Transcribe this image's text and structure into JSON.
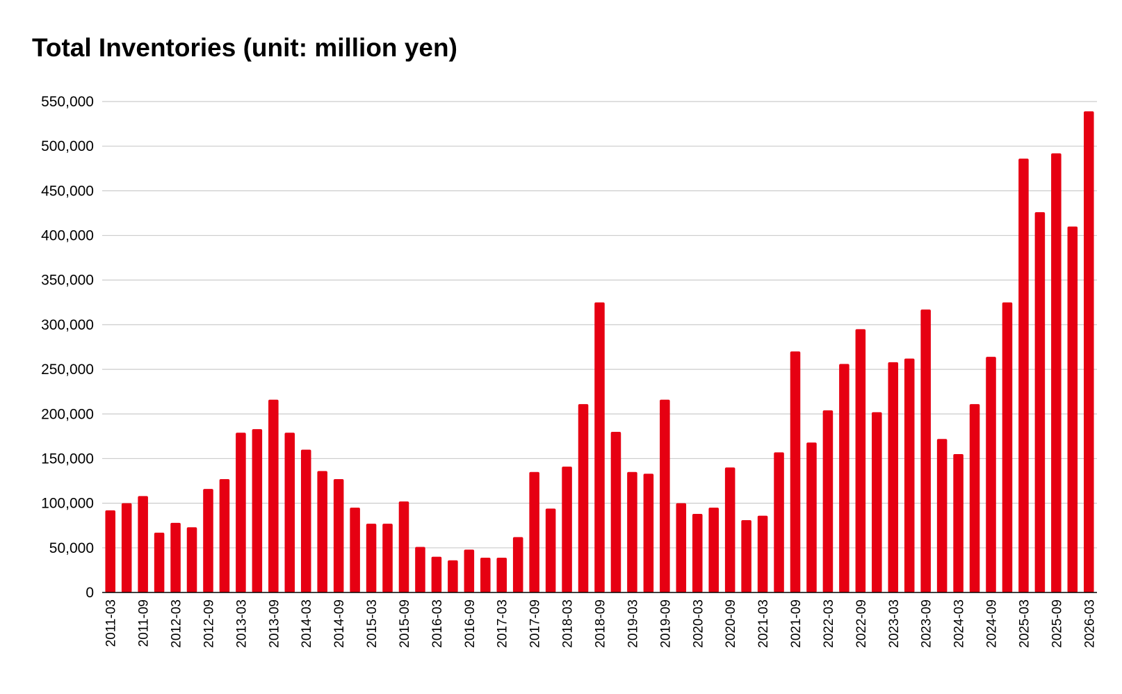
{
  "chart_data": {
    "type": "bar",
    "title": "Total Inventories (unit: million yen)",
    "xlabel": "",
    "ylabel": "",
    "ylim": [
      0,
      550000
    ],
    "yticks": [
      "0",
      "50,000",
      "100,000",
      "150,000",
      "200,000",
      "250,000",
      "300,000",
      "350,000",
      "400,000",
      "450,000",
      "500,000",
      "550,000"
    ],
    "grid": true,
    "bar_color": "#e60012",
    "categories": [
      "2011-03",
      "2011-06",
      "2011-09",
      "2011-12",
      "2012-03",
      "2012-06",
      "2012-09",
      "2012-12",
      "2013-03",
      "2013-06",
      "2013-09",
      "2013-12",
      "2014-03",
      "2014-06",
      "2014-09",
      "2014-12",
      "2015-03",
      "2015-06",
      "2015-09",
      "2015-12",
      "2016-03",
      "2016-06",
      "2016-09",
      "2016-12",
      "2017-03",
      "2017-06",
      "2017-09",
      "2017-12",
      "2018-03",
      "2018-06",
      "2018-09",
      "2018-12",
      "2019-03",
      "2019-06",
      "2019-09",
      "2019-12",
      "2020-03",
      "2020-06",
      "2020-09",
      "2020-12",
      "2021-03",
      "2021-06",
      "2021-09",
      "2021-12",
      "2022-03",
      "2022-06",
      "2022-09",
      "2022-12",
      "2023-03",
      "2023-06",
      "2023-09",
      "2023-12",
      "2024-03",
      "2024-06",
      "2024-09",
      "2024-12",
      "2025-03",
      "2025-06",
      "2025-09",
      "2025-12",
      "2026-03"
    ],
    "shown_tick_labels": [
      "2011-03",
      "2011-09",
      "2012-03",
      "2012-09",
      "2013-03",
      "2013-09",
      "2014-03",
      "2014-09",
      "2015-03",
      "2015-09",
      "2016-03",
      "2016-09",
      "2017-03",
      "2017-09",
      "2018-03",
      "2018-09",
      "2019-03",
      "2019-09",
      "2020-03",
      "2020-09",
      "2021-03",
      "2021-09",
      "2022-03",
      "2022-09",
      "2023-03",
      "2023-09",
      "2024-03",
      "2024-09",
      "2025-03",
      "2025-09",
      "2026-03"
    ],
    "values": [
      92000,
      100000,
      108000,
      67000,
      78000,
      73000,
      116000,
      127000,
      179000,
      183000,
      216000,
      179000,
      160000,
      136000,
      127000,
      95000,
      77000,
      77000,
      102000,
      51000,
      40000,
      36000,
      48000,
      39000,
      39000,
      62000,
      135000,
      94000,
      141000,
      211000,
      325000,
      180000,
      135000,
      133000,
      216000,
      100000,
      88000,
      95000,
      140000,
      81000,
      86000,
      157000,
      270000,
      168000,
      204000,
      256000,
      295000,
      202000,
      258000,
      262000,
      317000,
      172000,
      155000,
      211000,
      264000,
      325000,
      486000,
      426000,
      492000,
      410000,
      539000
    ]
  }
}
